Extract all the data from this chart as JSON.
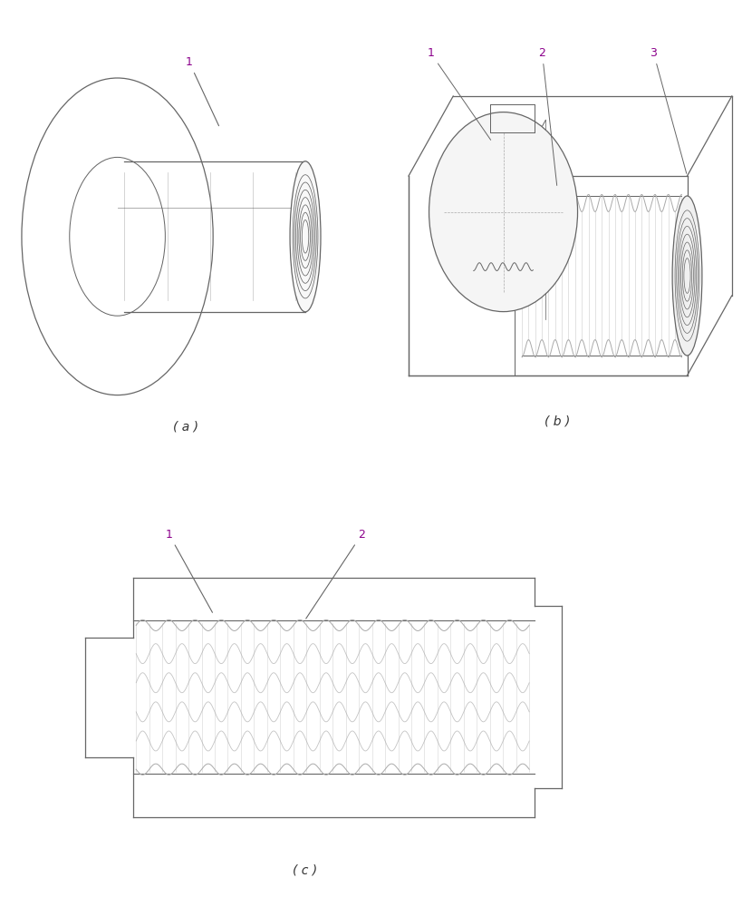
{
  "background_color": "#ffffff",
  "line_color": "#aaaaaa",
  "dark_line_color": "#666666",
  "label_color": "#8b008b",
  "figure_label_a": "( a )",
  "figure_label_b": "( b )",
  "figure_label_c": "( c )",
  "label_fontsize": 10,
  "ref_fontsize": 9,
  "fig_width": 8.2,
  "fig_height": 10.0
}
